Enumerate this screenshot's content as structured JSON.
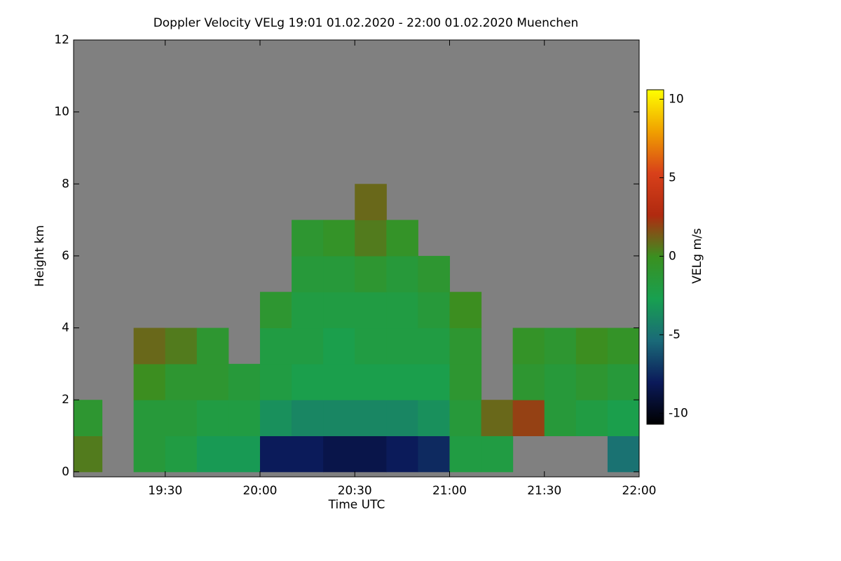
{
  "chart_data": {
    "type": "heatmap",
    "title": "Doppler Velocity VELg   19:01 01.02.2020 - 22:00 01.02.2020 Muenchen",
    "x_label": "Time UTC",
    "y_label": "Height km",
    "colorbar_label": "VELg m/s",
    "xlim": [
      19.0167,
      22.0
    ],
    "ylim": [
      -0.14,
      12
    ],
    "xticks": [
      {
        "value": 19.5,
        "label": "19:30"
      },
      {
        "value": 20.0,
        "label": "20:00"
      },
      {
        "value": 20.5,
        "label": "20:30"
      },
      {
        "value": 21.0,
        "label": "21:00"
      },
      {
        "value": 21.5,
        "label": "21:30"
      },
      {
        "value": 22.0,
        "label": "22:00"
      }
    ],
    "yticks": [
      0,
      2,
      4,
      6,
      8,
      10,
      12
    ],
    "zlim": [
      -10.7,
      10.6
    ],
    "zticks": [
      -10,
      -5,
      0,
      5,
      10
    ],
    "colorscale": [
      "#000000",
      "#0b1a5a",
      "#1a6a78",
      "#18a050",
      "#3a9020",
      "#b02a10",
      "#d8401a",
      "#f0a000",
      "#ffff00"
    ],
    "background": "#808080",
    "xbins": [
      19.0167,
      19.1667,
      19.3333,
      19.5,
      19.6667,
      19.8333,
      20.0,
      20.1667,
      20.3333,
      20.5,
      20.6667,
      20.8333,
      21.0,
      21.1667,
      21.3333,
      21.5,
      21.6667,
      21.8333,
      22.0
    ],
    "ybins": [
      0,
      1,
      2,
      3,
      4,
      5,
      6,
      7,
      8
    ],
    "z": [
      [
        0.5,
        null,
        -1.5,
        -2,
        -3,
        -3,
        -8,
        -8,
        -8.5,
        -8.5,
        -8,
        -7.5,
        -2,
        -2,
        null,
        null,
        null,
        -5
      ],
      [
        -1,
        null,
        -1.5,
        -1.5,
        -2,
        -2,
        -3.5,
        -4,
        -4,
        -4,
        -4,
        -3.5,
        -1.5,
        1,
        2,
        -1.5,
        -2,
        -2.5
      ],
      [
        null,
        null,
        0,
        -1,
        -1,
        -1.5,
        -2,
        -2.5,
        -2.5,
        -2.5,
        -2.5,
        -2.5,
        -1,
        null,
        -1,
        -1.5,
        -1,
        -1.5
      ],
      [
        null,
        null,
        1,
        0.5,
        -1,
        null,
        -2,
        -2,
        -2.5,
        -2,
        -2,
        -2,
        -1,
        null,
        -0.5,
        -1,
        0,
        -0.5
      ],
      [
        null,
        null,
        null,
        null,
        null,
        null,
        -1,
        -2,
        -2,
        -2,
        -2,
        -1.5,
        0,
        null,
        null,
        null,
        null,
        null
      ],
      [
        null,
        null,
        null,
        null,
        null,
        null,
        null,
        -1.5,
        -1.5,
        -1,
        -1.5,
        -1,
        null,
        null,
        null,
        null,
        null,
        null
      ],
      [
        null,
        null,
        null,
        null,
        null,
        null,
        null,
        -1,
        -0.5,
        0.5,
        -0.5,
        null,
        null,
        null,
        null,
        null,
        null,
        null
      ],
      [
        null,
        null,
        null,
        null,
        null,
        null,
        null,
        null,
        null,
        1,
        null,
        null,
        null,
        null,
        null,
        null,
        null,
        null
      ]
    ]
  }
}
